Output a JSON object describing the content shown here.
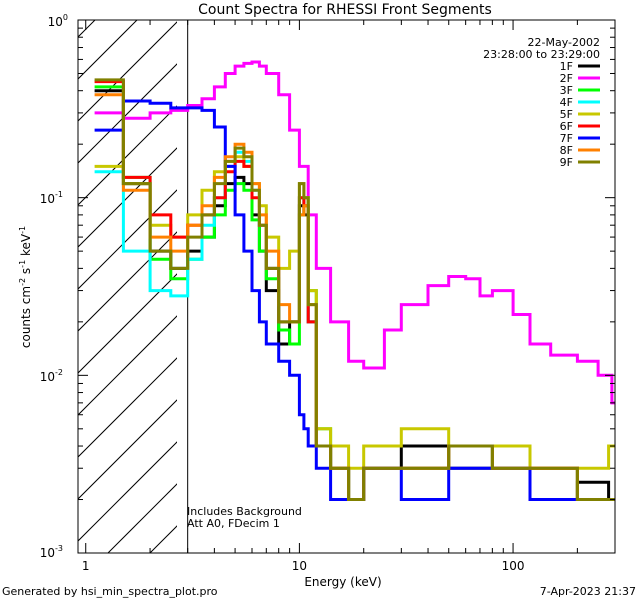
{
  "chart_data": {
    "type": "line",
    "title": "Count Spectra for RHESSI Front Segments",
    "xlabel": "Energy (keV)",
    "ylabel_base": "counts cm",
    "ylabel_full": "counts cm^-2 s^-1 keV^-1",
    "ylabel_units": [
      "-2",
      "s",
      "-1",
      "keV",
      "-1"
    ],
    "x_scale": "log",
    "y_scale": "log",
    "xlim": [
      1,
      300
    ],
    "ylim": [
      0.001,
      1
    ],
    "x_ticks": [
      {
        "value": 1,
        "label": "1"
      },
      {
        "value": 10,
        "label": "10"
      },
      {
        "value": 100,
        "label": "100"
      }
    ],
    "y_ticks": [
      {
        "value": 1,
        "base": "10",
        "exp": "0"
      },
      {
        "value": 0.1,
        "base": "10",
        "exp": "-1"
      },
      {
        "value": 0.01,
        "base": "10",
        "exp": "-2"
      },
      {
        "value": 0.001,
        "base": "10",
        "exp": "-3"
      }
    ],
    "hatched_region_kev": [
      1,
      3
    ],
    "date": "22-May-2002",
    "time_range": "23:28:00 to 23:29:00",
    "annotations": [
      "Includes Background",
      "Att A0, FDecim 1"
    ],
    "legend_position": "top-right",
    "series": [
      {
        "name": "1F",
        "color": "#000000",
        "x": [
          1.1,
          1.5,
          2.0,
          2.5,
          3.0,
          3.5,
          4.0,
          4.5,
          5.0,
          5.5,
          6.0,
          6.5,
          7.0,
          8.0,
          9.0,
          10.0,
          10.5,
          11.0,
          12.0,
          14.0,
          17.0,
          20.0,
          30.0,
          50.0,
          80.0,
          120.0,
          200.0,
          280.0
        ],
        "y": [
          0.4,
          0.12,
          0.05,
          0.04,
          0.05,
          0.06,
          0.09,
          0.12,
          0.13,
          0.12,
          0.08,
          0.05,
          0.03,
          0.015,
          0.02,
          0.09,
          0.08,
          0.02,
          0.004,
          0.003,
          0.002,
          0.003,
          0.004,
          0.003,
          0.003,
          0.002,
          0.0025,
          0.002
        ]
      },
      {
        "name": "2F",
        "color": "#ff00ff",
        "x": [
          1.1,
          1.5,
          2.0,
          2.5,
          3.0,
          3.5,
          4.0,
          4.5,
          5.0,
          5.5,
          6.0,
          6.5,
          7.0,
          8.0,
          9.0,
          10.0,
          11.0,
          12.0,
          14.0,
          17.0,
          20.0,
          25.0,
          30.0,
          40.0,
          50.0,
          60.0,
          70.0,
          80.0,
          100.0,
          120.0,
          150.0,
          200.0,
          250.0,
          290.0
        ],
        "y": [
          0.3,
          0.28,
          0.3,
          0.31,
          0.33,
          0.36,
          0.42,
          0.5,
          0.55,
          0.57,
          0.58,
          0.55,
          0.5,
          0.38,
          0.24,
          0.15,
          0.08,
          0.04,
          0.02,
          0.012,
          0.011,
          0.018,
          0.025,
          0.032,
          0.036,
          0.035,
          0.028,
          0.03,
          0.022,
          0.015,
          0.013,
          0.012,
          0.01,
          0.007
        ]
      },
      {
        "name": "3F",
        "color": "#00ff00",
        "x": [
          1.1,
          1.5,
          2.0,
          2.5,
          3.0,
          3.5,
          4.0,
          4.5,
          5.0,
          5.5,
          6.0,
          6.5,
          7.0,
          8.0,
          9.0,
          10.0,
          10.5,
          11.0,
          12.0,
          14.0,
          17.0,
          20.0,
          30.0,
          50.0,
          80.0,
          120.0,
          200.0,
          280.0
        ],
        "y": [
          0.42,
          0.13,
          0.045,
          0.035,
          0.045,
          0.06,
          0.08,
          0.11,
          0.12,
          0.11,
          0.075,
          0.05,
          0.035,
          0.018,
          0.015,
          0.08,
          0.1,
          0.03,
          0.005,
          0.003,
          0.002,
          0.003,
          0.003,
          0.004,
          0.003,
          0.003,
          0.002,
          0.002
        ]
      },
      {
        "name": "4F",
        "color": "#00ffff",
        "x": [
          1.1,
          1.5,
          2.0,
          2.5,
          3.0,
          3.5,
          4.0,
          4.5,
          5.0,
          5.5,
          6.0,
          6.5,
          7.0,
          8.0,
          9.0,
          10.0,
          10.5,
          11.0,
          12.0,
          14.0,
          17.0,
          20.0,
          30.0,
          50.0,
          80.0,
          120.0,
          200.0,
          280.0
        ],
        "y": [
          0.14,
          0.05,
          0.03,
          0.028,
          0.045,
          0.07,
          0.1,
          0.15,
          0.18,
          0.16,
          0.11,
          0.07,
          0.04,
          0.02,
          0.02,
          0.1,
          0.09,
          0.02,
          0.004,
          0.003,
          0.002,
          0.003,
          0.003,
          0.004,
          0.003,
          0.003,
          0.002,
          0.002
        ]
      },
      {
        "name": "5F",
        "color": "#c8c800",
        "x": [
          1.1,
          1.5,
          2.0,
          2.5,
          3.0,
          3.5,
          4.0,
          4.5,
          5.0,
          5.5,
          6.0,
          6.5,
          7.0,
          8.0,
          9.0,
          10.0,
          10.5,
          11.0,
          12.0,
          14.0,
          17.0,
          20.0,
          30.0,
          50.0,
          80.0,
          120.0,
          200.0,
          280.0
        ],
        "y": [
          0.15,
          0.12,
          0.07,
          0.06,
          0.08,
          0.11,
          0.14,
          0.16,
          0.17,
          0.15,
          0.12,
          0.09,
          0.06,
          0.04,
          0.05,
          0.12,
          0.1,
          0.03,
          0.005,
          0.004,
          0.003,
          0.004,
          0.005,
          0.004,
          0.004,
          0.003,
          0.003,
          0.004
        ]
      },
      {
        "name": "6F",
        "color": "#ff0000",
        "x": [
          1.1,
          1.5,
          2.0,
          2.5,
          3.0,
          3.5,
          4.0,
          4.5,
          5.0,
          5.5,
          6.0,
          6.5,
          7.0,
          8.0,
          9.0,
          10.0,
          10.5,
          11.0,
          12.0,
          14.0,
          17.0,
          20.0,
          30.0,
          50.0,
          80.0,
          120.0,
          200.0,
          280.0
        ],
        "y": [
          0.45,
          0.13,
          0.08,
          0.06,
          0.07,
          0.08,
          0.1,
          0.14,
          0.16,
          0.15,
          0.1,
          0.07,
          0.04,
          0.02,
          0.02,
          0.1,
          0.09,
          0.02,
          0.004,
          0.003,
          0.002,
          0.003,
          0.003,
          0.004,
          0.003,
          0.003,
          0.002,
          0.002
        ]
      },
      {
        "name": "7F",
        "color": "#0000ff",
        "x": [
          1.1,
          1.5,
          2.0,
          2.5,
          3.0,
          3.5,
          4.0,
          4.5,
          5.0,
          5.5,
          6.0,
          6.5,
          7.0,
          8.0,
          9.0,
          10.0,
          10.5,
          11.0,
          12.0,
          14.0,
          17.0,
          20.0,
          30.0,
          50.0,
          80.0,
          120.0,
          200.0,
          280.0
        ],
        "y": [
          0.24,
          0.35,
          0.34,
          0.32,
          0.32,
          0.31,
          0.25,
          0.15,
          0.08,
          0.05,
          0.03,
          0.02,
          0.015,
          0.012,
          0.01,
          0.006,
          0.005,
          0.004,
          0.003,
          0.002,
          0.002,
          0.003,
          0.002,
          0.003,
          0.003,
          0.002,
          0.002,
          0.002
        ]
      },
      {
        "name": "8F",
        "color": "#ff8000",
        "x": [
          1.1,
          1.5,
          2.0,
          2.5,
          3.0,
          3.5,
          4.0,
          4.5,
          5.0,
          5.5,
          6.0,
          6.5,
          7.0,
          8.0,
          9.0,
          10.0,
          10.5,
          11.0,
          12.0,
          14.0,
          17.0,
          20.0,
          30.0,
          50.0,
          80.0,
          120.0,
          200.0,
          280.0
        ],
        "y": [
          0.38,
          0.11,
          0.06,
          0.05,
          0.07,
          0.09,
          0.13,
          0.17,
          0.2,
          0.18,
          0.12,
          0.08,
          0.05,
          0.025,
          0.02,
          0.08,
          0.09,
          0.025,
          0.004,
          0.003,
          0.002,
          0.003,
          0.003,
          0.004,
          0.003,
          0.003,
          0.002,
          0.002
        ]
      },
      {
        "name": "9F",
        "color": "#808000",
        "x": [
          1.1,
          1.5,
          2.0,
          2.5,
          3.0,
          3.5,
          4.0,
          4.5,
          5.0,
          5.5,
          6.0,
          6.5,
          7.0,
          8.0,
          9.0,
          10.0,
          10.5,
          11.0,
          12.0,
          14.0,
          17.0,
          20.0,
          30.0,
          50.0,
          80.0,
          120.0,
          200.0,
          280.0
        ],
        "y": [
          0.46,
          0.12,
          0.05,
          0.04,
          0.06,
          0.08,
          0.12,
          0.16,
          0.19,
          0.17,
          0.11,
          0.07,
          0.04,
          0.02,
          0.02,
          0.12,
          0.1,
          0.025,
          0.004,
          0.003,
          0.002,
          0.003,
          0.003,
          0.004,
          0.003,
          0.003,
          0.002,
          0.002
        ]
      }
    ]
  },
  "footer": {
    "generated_by": "Generated by hsi_min_spectra_plot.pro",
    "timestamp": "7-Apr-2023 21:37"
  }
}
